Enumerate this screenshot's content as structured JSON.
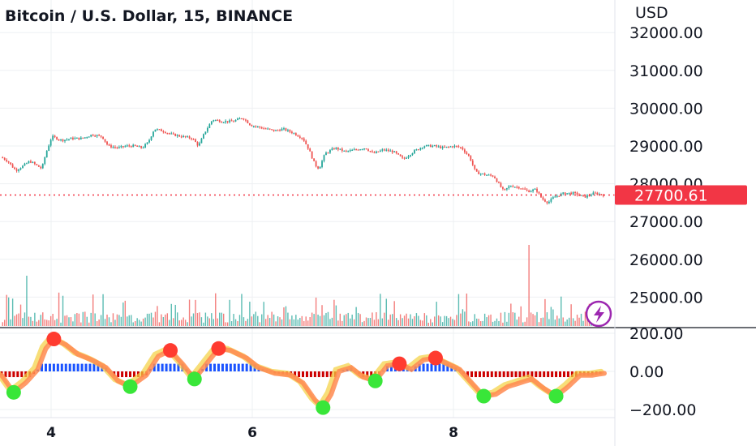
{
  "chart_data": {
    "type": "candlestick",
    "title": "Bitcoin / U.S. Dollar, 15, BINANCE",
    "currency": "USD",
    "y_ticks": [
      25000,
      26000,
      27000,
      28000,
      29000,
      30000,
      31000,
      32000
    ],
    "y_tick_labels": [
      "25000.00",
      "26000.00",
      "27000.00",
      "28000.00",
      "29000.00",
      "30000.00",
      "31000.00",
      "32000.00"
    ],
    "x_tick_labels": [
      "4",
      "6",
      "8"
    ],
    "last_price": 27700.61,
    "last_price_label": "27700.61",
    "price_path": [
      {
        "t": 0,
        "p": 28700
      },
      {
        "t": 3,
        "p": 28600
      },
      {
        "t": 7,
        "p": 28350
      },
      {
        "t": 10,
        "p": 28450
      },
      {
        "t": 14,
        "p": 28600
      },
      {
        "t": 17,
        "p": 28500
      },
      {
        "t": 20,
        "p": 28400
      },
      {
        "t": 22,
        "p": 28800
      },
      {
        "t": 25,
        "p": 29250
      },
      {
        "t": 30,
        "p": 29150
      },
      {
        "t": 35,
        "p": 29200
      },
      {
        "t": 40,
        "p": 29200
      },
      {
        "t": 45,
        "p": 29300
      },
      {
        "t": 50,
        "p": 29250
      },
      {
        "t": 53,
        "p": 29000
      },
      {
        "t": 58,
        "p": 28950
      },
      {
        "t": 62,
        "p": 29000
      },
      {
        "t": 66,
        "p": 29000
      },
      {
        "t": 70,
        "p": 28950
      },
      {
        "t": 73,
        "p": 29100
      },
      {
        "t": 76,
        "p": 29450
      },
      {
        "t": 80,
        "p": 29400
      },
      {
        "t": 85,
        "p": 29300
      },
      {
        "t": 90,
        "p": 29250
      },
      {
        "t": 95,
        "p": 29200
      },
      {
        "t": 98,
        "p": 29000
      },
      {
        "t": 101,
        "p": 29350
      },
      {
        "t": 105,
        "p": 29700
      },
      {
        "t": 110,
        "p": 29650
      },
      {
        "t": 115,
        "p": 29650
      },
      {
        "t": 120,
        "p": 29750
      },
      {
        "t": 124,
        "p": 29550
      },
      {
        "t": 128,
        "p": 29500
      },
      {
        "t": 132,
        "p": 29450
      },
      {
        "t": 136,
        "p": 29400
      },
      {
        "t": 140,
        "p": 29450
      },
      {
        "t": 145,
        "p": 29350
      },
      {
        "t": 150,
        "p": 29200
      },
      {
        "t": 153,
        "p": 28900
      },
      {
        "t": 156,
        "p": 28500
      },
      {
        "t": 158,
        "p": 28400
      },
      {
        "t": 161,
        "p": 28800
      },
      {
        "t": 166,
        "p": 28950
      },
      {
        "t": 171,
        "p": 28850
      },
      {
        "t": 176,
        "p": 28900
      },
      {
        "t": 181,
        "p": 28950
      },
      {
        "t": 185,
        "p": 28800
      },
      {
        "t": 190,
        "p": 28900
      },
      {
        "t": 195,
        "p": 28850
      },
      {
        "t": 200,
        "p": 28650
      },
      {
        "t": 205,
        "p": 28850
      },
      {
        "t": 210,
        "p": 29000
      },
      {
        "t": 215,
        "p": 29000
      },
      {
        "t": 220,
        "p": 28950
      },
      {
        "t": 225,
        "p": 29000
      },
      {
        "t": 229,
        "p": 28950
      },
      {
        "t": 233,
        "p": 28700
      },
      {
        "t": 236,
        "p": 28300
      },
      {
        "t": 240,
        "p": 28250
      },
      {
        "t": 245,
        "p": 28200
      },
      {
        "t": 248,
        "p": 27950
      },
      {
        "t": 250,
        "p": 27800
      },
      {
        "t": 253,
        "p": 27950
      },
      {
        "t": 258,
        "p": 27900
      },
      {
        "t": 262,
        "p": 27800
      },
      {
        "t": 266,
        "p": 27850
      },
      {
        "t": 269,
        "p": 27600
      },
      {
        "t": 272,
        "p": 27500
      },
      {
        "t": 275,
        "p": 27650
      },
      {
        "t": 280,
        "p": 27750
      },
      {
        "t": 285,
        "p": 27750
      },
      {
        "t": 290,
        "p": 27650
      },
      {
        "t": 295,
        "p": 27750
      },
      {
        "t": 300,
        "p": 27700
      }
    ],
    "oscillator": {
      "y_ticks": [
        -200,
        0,
        200
      ],
      "y_tick_labels": [
        "−200.00",
        "0.00",
        "200.00"
      ],
      "path": [
        {
          "t": 0,
          "v": -20
        },
        {
          "t": 6,
          "v": -110
        },
        {
          "t": 12,
          "v": -60
        },
        {
          "t": 18,
          "v": 10
        },
        {
          "t": 22,
          "v": 120
        },
        {
          "t": 26,
          "v": 170
        },
        {
          "t": 32,
          "v": 140
        },
        {
          "t": 38,
          "v": 90
        },
        {
          "t": 45,
          "v": 60
        },
        {
          "t": 52,
          "v": 20
        },
        {
          "t": 58,
          "v": -50
        },
        {
          "t": 64,
          "v": -80
        },
        {
          "t": 72,
          "v": -20
        },
        {
          "t": 78,
          "v": 80
        },
        {
          "t": 84,
          "v": 110
        },
        {
          "t": 90,
          "v": 40
        },
        {
          "t": 96,
          "v": -40
        },
        {
          "t": 102,
          "v": 40
        },
        {
          "t": 108,
          "v": 120
        },
        {
          "t": 114,
          "v": 110
        },
        {
          "t": 122,
          "v": 70
        },
        {
          "t": 128,
          "v": 20
        },
        {
          "t": 136,
          "v": -10
        },
        {
          "t": 144,
          "v": -20
        },
        {
          "t": 150,
          "v": -60
        },
        {
          "t": 156,
          "v": -150
        },
        {
          "t": 160,
          "v": -190
        },
        {
          "t": 164,
          "v": -120
        },
        {
          "t": 168,
          "v": 0
        },
        {
          "t": 174,
          "v": 20
        },
        {
          "t": 180,
          "v": -30
        },
        {
          "t": 186,
          "v": -50
        },
        {
          "t": 192,
          "v": 30
        },
        {
          "t": 198,
          "v": 40
        },
        {
          "t": 204,
          "v": 10
        },
        {
          "t": 210,
          "v": 60
        },
        {
          "t": 216,
          "v": 70
        },
        {
          "t": 222,
          "v": 40
        },
        {
          "t": 228,
          "v": 10
        },
        {
          "t": 234,
          "v": -60
        },
        {
          "t": 240,
          "v": -130
        },
        {
          "t": 246,
          "v": -120
        },
        {
          "t": 252,
          "v": -80
        },
        {
          "t": 258,
          "v": -60
        },
        {
          "t": 264,
          "v": -40
        },
        {
          "t": 270,
          "v": -90
        },
        {
          "t": 276,
          "v": -130
        },
        {
          "t": 282,
          "v": -80
        },
        {
          "t": 288,
          "v": -20
        },
        {
          "t": 294,
          "v": -20
        },
        {
          "t": 300,
          "v": -10
        }
      ]
    },
    "colors": {
      "up": "#26a69a",
      "down": "#ef5350",
      "last_price": "#f23645",
      "axis_text": "#131722",
      "grid": "#eef0f3",
      "osc_high": "#ff3b30",
      "osc_low": "#39e639",
      "osc_pos_hist": "#1a53ff",
      "osc_neg_hist": "#cc0000"
    }
  },
  "icons": {
    "flash": "lightning-bolt-icon"
  }
}
